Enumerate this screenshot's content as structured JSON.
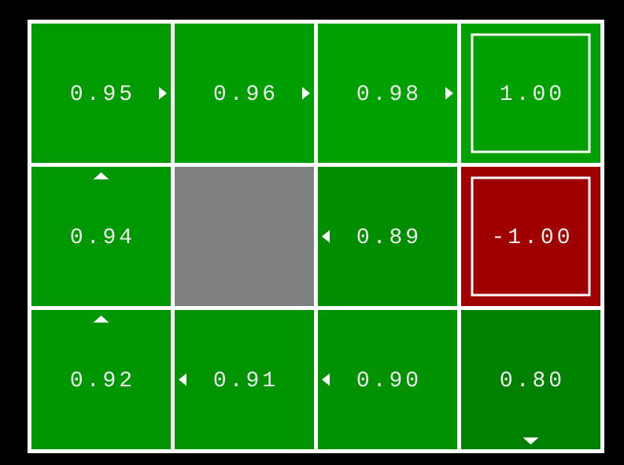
{
  "grid": {
    "rows": [
      [
        {
          "value": "0.95",
          "color": "#009a00",
          "arrow": "east"
        },
        {
          "value": "0.96",
          "color": "#009d00",
          "arrow": "east"
        },
        {
          "value": "0.98",
          "color": "#00a000",
          "arrow": "east"
        },
        {
          "value": "1.00",
          "color": "#00a000",
          "terminal": true
        }
      ],
      [
        {
          "value": "0.94",
          "color": "#009800",
          "arrow": "north"
        },
        {
          "wall": true,
          "color": "#808080"
        },
        {
          "value": "0.89",
          "color": "#008e00",
          "arrow": "west"
        },
        {
          "value": "-1.00",
          "color": "#a00000",
          "terminal": true
        }
      ],
      [
        {
          "value": "0.92",
          "color": "#009600",
          "arrow": "north"
        },
        {
          "value": "0.91",
          "color": "#009400",
          "arrow": "west"
        },
        {
          "value": "0.90",
          "color": "#009200",
          "arrow": "west"
        },
        {
          "value": "0.80",
          "color": "#008000",
          "arrow": "south"
        }
      ]
    ]
  }
}
